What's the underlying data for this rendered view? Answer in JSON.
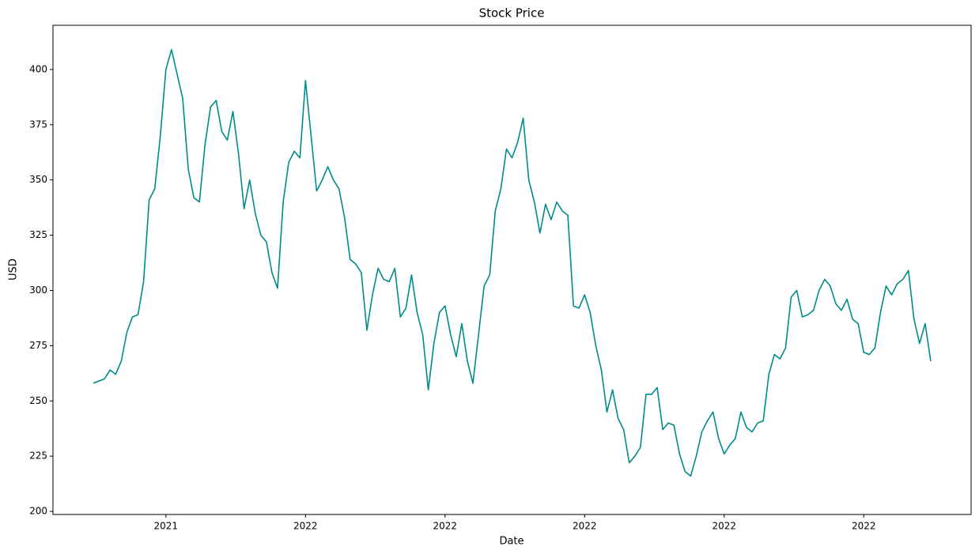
{
  "chart_data": {
    "type": "line",
    "title": "Stock Price",
    "x_label": "Date",
    "y_label": "USD",
    "categories": [
      null,
      null,
      null,
      null,
      null,
      null,
      null,
      null,
      null,
      null,
      null,
      null,
      null,
      "2021",
      null,
      null,
      null,
      null,
      null,
      null,
      null,
      null,
      null,
      null,
      null,
      null,
      null,
      null,
      null,
      null,
      null,
      null,
      null,
      null,
      null,
      null,
      null,
      null,
      "2022",
      null,
      null,
      null,
      null,
      null,
      null,
      null,
      null,
      null,
      null,
      null,
      null,
      null,
      null,
      null,
      null,
      null,
      null,
      null,
      null,
      null,
      null,
      null,
      null,
      "2022",
      null,
      null,
      null,
      null,
      null,
      null,
      null,
      null,
      null,
      null,
      null,
      null,
      null,
      null,
      null,
      null,
      null,
      null,
      null,
      null,
      null,
      null,
      null,
      null,
      "2022",
      null,
      null,
      null,
      null,
      null,
      null,
      null,
      null,
      null,
      null,
      null,
      null,
      null,
      null,
      null,
      null,
      null,
      null,
      null,
      null,
      null,
      null,
      null,
      null,
      "2022",
      null,
      null,
      null,
      null,
      null,
      null,
      null,
      null,
      null,
      null,
      null,
      null,
      null,
      null,
      null,
      null,
      null,
      null,
      null,
      null,
      null,
      null,
      null,
      null,
      "2022",
      null,
      null,
      null,
      null,
      null,
      null,
      null,
      null,
      null,
      null,
      null,
      null
    ],
    "values": [
      258,
      259,
      260,
      264,
      262,
      268,
      281,
      288,
      289,
      304,
      341,
      346,
      370,
      400,
      409,
      398,
      387,
      355,
      342,
      340,
      366,
      383,
      386,
      372,
      368,
      381,
      362,
      337,
      350,
      335,
      325,
      322,
      308,
      301,
      340,
      358,
      363,
      360,
      395,
      370,
      345,
      350,
      356,
      350,
      346,
      333,
      314,
      312,
      308,
      282,
      298,
      310,
      305,
      304,
      310,
      288,
      292,
      307,
      290,
      280,
      255,
      276,
      290,
      293,
      280,
      270,
      285,
      268,
      258,
      280,
      302,
      307,
      336,
      346,
      364,
      360,
      367,
      378,
      350,
      340,
      326,
      339,
      332,
      340,
      336,
      334,
      293,
      292,
      298,
      290,
      275,
      264,
      245,
      255,
      242,
      237,
      222,
      225,
      229,
      253,
      253,
      256,
      237,
      240,
      239,
      226,
      218,
      216,
      225,
      236,
      241,
      245,
      233,
      226,
      230,
      233,
      245,
      238,
      236,
      240,
      241,
      262,
      271,
      269,
      274,
      297,
      300,
      288,
      289,
      291,
      300,
      305,
      302,
      294,
      291,
      296,
      287,
      285,
      272,
      271,
      274,
      290,
      302,
      298,
      303,
      305,
      309,
      287,
      276,
      285,
      268
    ],
    "color": "#008b8b",
    "ylim": [
      198.6,
      420
    ],
    "yticks": [
      200,
      225,
      250,
      275,
      300,
      325,
      350,
      375,
      400
    ]
  }
}
